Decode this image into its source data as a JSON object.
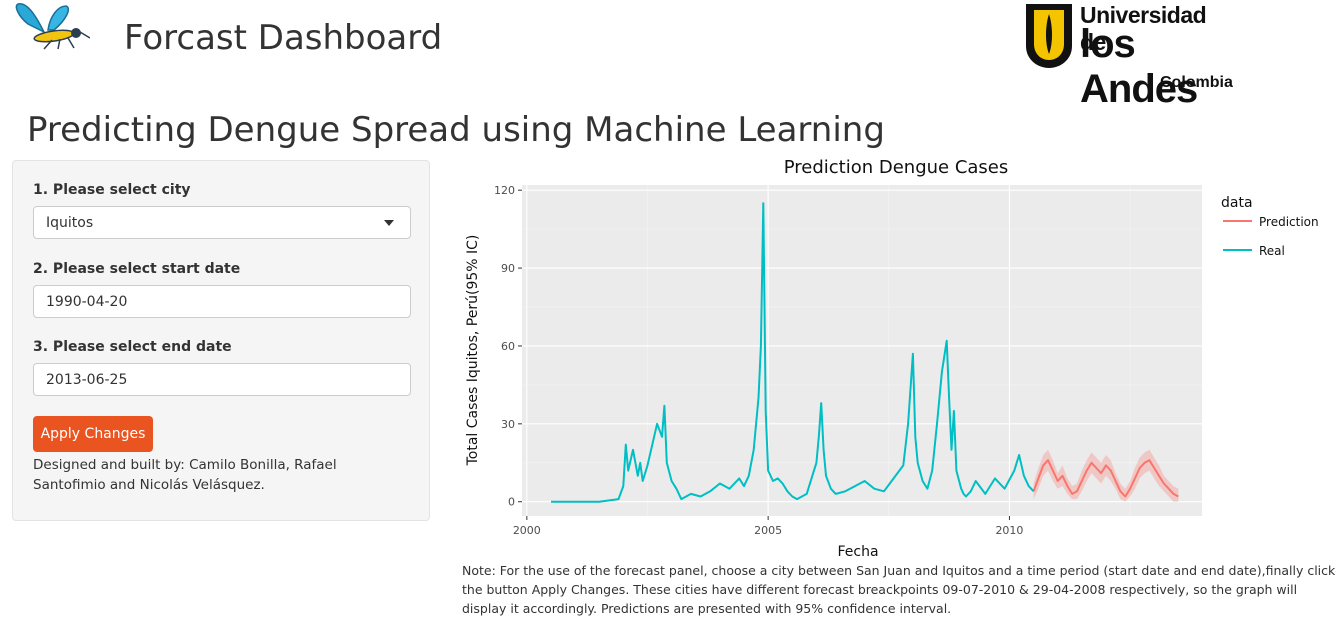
{
  "header": {
    "app_title": "Forcast Dashboard",
    "logo_icon": "mosquito-icon",
    "university": {
      "line1": "Universidad de",
      "line2": "los Andes",
      "line3": "Colombia"
    }
  },
  "page_title": "Predicting Dengue Spread using Machine Learning",
  "sidebar": {
    "city_label": "1. Please select city",
    "city_value": "Iquitos",
    "start_label": "2. Please select start date",
    "start_value": "1990-04-20",
    "end_label": "3. Please select end date",
    "end_value": "2013-06-25",
    "apply_button": "Apply Changes",
    "credits": "Designed and built by: Camilo Bonilla, Rafael Santofimio and Nicolás Velásquez."
  },
  "note": "Note: For the use of the forecast panel, choose a city between San Juan and Iquitos and a time period (start date and end date),finally click the button Apply Changes. These cities have different forecast breackpoints 09-07-2010 & 29-04-2008 respectively, so the graph will display it accordingly. Predictions are presented with 95% confidence interval.",
  "colors": {
    "accent": "#e95420",
    "real": "#00bfc4",
    "prediction": "#f8766d",
    "panel": "#ebebeb"
  },
  "chart_data": {
    "type": "line",
    "title": "Prediction Dengue Cases",
    "xlabel": "Fecha",
    "ylabel": "Total Cases Iquitos, Perú(95% IC)",
    "xlim": [
      1999.9,
      2013.99
    ],
    "ylim": [
      -5.5,
      122
    ],
    "xticks": [
      2000,
      2005,
      2010
    ],
    "xtick_labels": [
      "2000",
      "2005",
      "2010"
    ],
    "yticks": [
      0,
      30,
      60,
      90,
      120
    ],
    "ytick_labels": [
      "0",
      "30",
      "60",
      "90",
      "120"
    ],
    "grid": true,
    "legend": {
      "title": "data",
      "position": "right"
    },
    "series": [
      {
        "name": "Prediction",
        "x": [
          2010.5,
          2010.6,
          2010.7,
          2010.8,
          2010.9,
          2011.0,
          2011.1,
          2011.2,
          2011.3,
          2011.4,
          2011.5,
          2011.6,
          2011.7,
          2011.8,
          2011.9,
          2012.0,
          2012.1,
          2012.2,
          2012.3,
          2012.4,
          2012.5,
          2012.6,
          2012.7,
          2012.8,
          2012.9,
          2013.0,
          2013.1,
          2013.2,
          2013.3,
          2013.4,
          2013.5
        ],
        "y": [
          4,
          9,
          14,
          16,
          12,
          8,
          10,
          6,
          3,
          4,
          8,
          12,
          15,
          13,
          11,
          14,
          12,
          8,
          4,
          2,
          5,
          9,
          13,
          15,
          16,
          13,
          10,
          7,
          5,
          3,
          2
        ],
        "lower": [
          1,
          5,
          10,
          12,
          8,
          5,
          6,
          3,
          1,
          1,
          4,
          8,
          11,
          9,
          7,
          10,
          8,
          5,
          1,
          0,
          2,
          5,
          9,
          11,
          12,
          9,
          6,
          4,
          2,
          0,
          0
        ],
        "upper": [
          7,
          13,
          18,
          20,
          16,
          11,
          14,
          9,
          6,
          7,
          12,
          16,
          19,
          17,
          15,
          18,
          16,
          11,
          7,
          5,
          8,
          13,
          17,
          19,
          20,
          17,
          14,
          10,
          8,
          6,
          5
        ]
      },
      {
        "name": "Real",
        "x": [
          2000.5,
          2001.0,
          2001.5,
          2001.9,
          2002.0,
          2002.05,
          2002.1,
          2002.2,
          2002.3,
          2002.35,
          2002.4,
          2002.5,
          2002.6,
          2002.7,
          2002.8,
          2002.85,
          2002.9,
          2003.0,
          2003.1,
          2003.2,
          2003.4,
          2003.6,
          2003.8,
          2004.0,
          2004.2,
          2004.4,
          2004.5,
          2004.6,
          2004.7,
          2004.8,
          2004.85,
          2004.9,
          2004.95,
          2005.0,
          2005.1,
          2005.2,
          2005.3,
          2005.4,
          2005.5,
          2005.6,
          2005.8,
          2006.0,
          2006.05,
          2006.1,
          2006.15,
          2006.2,
          2006.3,
          2006.4,
          2006.6,
          2006.8,
          2007.0,
          2007.2,
          2007.4,
          2007.6,
          2007.8,
          2007.9,
          2008.0,
          2008.05,
          2008.1,
          2008.2,
          2008.3,
          2008.4,
          2008.5,
          2008.6,
          2008.7,
          2008.75,
          2008.8,
          2008.85,
          2008.9,
          2009.0,
          2009.05,
          2009.1,
          2009.2,
          2009.3,
          2009.5,
          2009.7,
          2009.9,
          2010.1,
          2010.2,
          2010.3,
          2010.4,
          2010.5
        ],
        "y": [
          0,
          0,
          0,
          1,
          6,
          22,
          12,
          20,
          10,
          15,
          8,
          14,
          22,
          30,
          25,
          37,
          15,
          8,
          5,
          1,
          3,
          2,
          4,
          7,
          5,
          9,
          6,
          10,
          20,
          40,
          60,
          115,
          35,
          12,
          8,
          9,
          7,
          4,
          2,
          1,
          3,
          15,
          25,
          38,
          20,
          10,
          5,
          3,
          4,
          6,
          8,
          5,
          4,
          9,
          14,
          30,
          57,
          25,
          15,
          8,
          5,
          12,
          30,
          50,
          62,
          40,
          20,
          35,
          12,
          5,
          3,
          2,
          4,
          8,
          3,
          9,
          5,
          12,
          18,
          10,
          6,
          4
        ]
      }
    ]
  }
}
